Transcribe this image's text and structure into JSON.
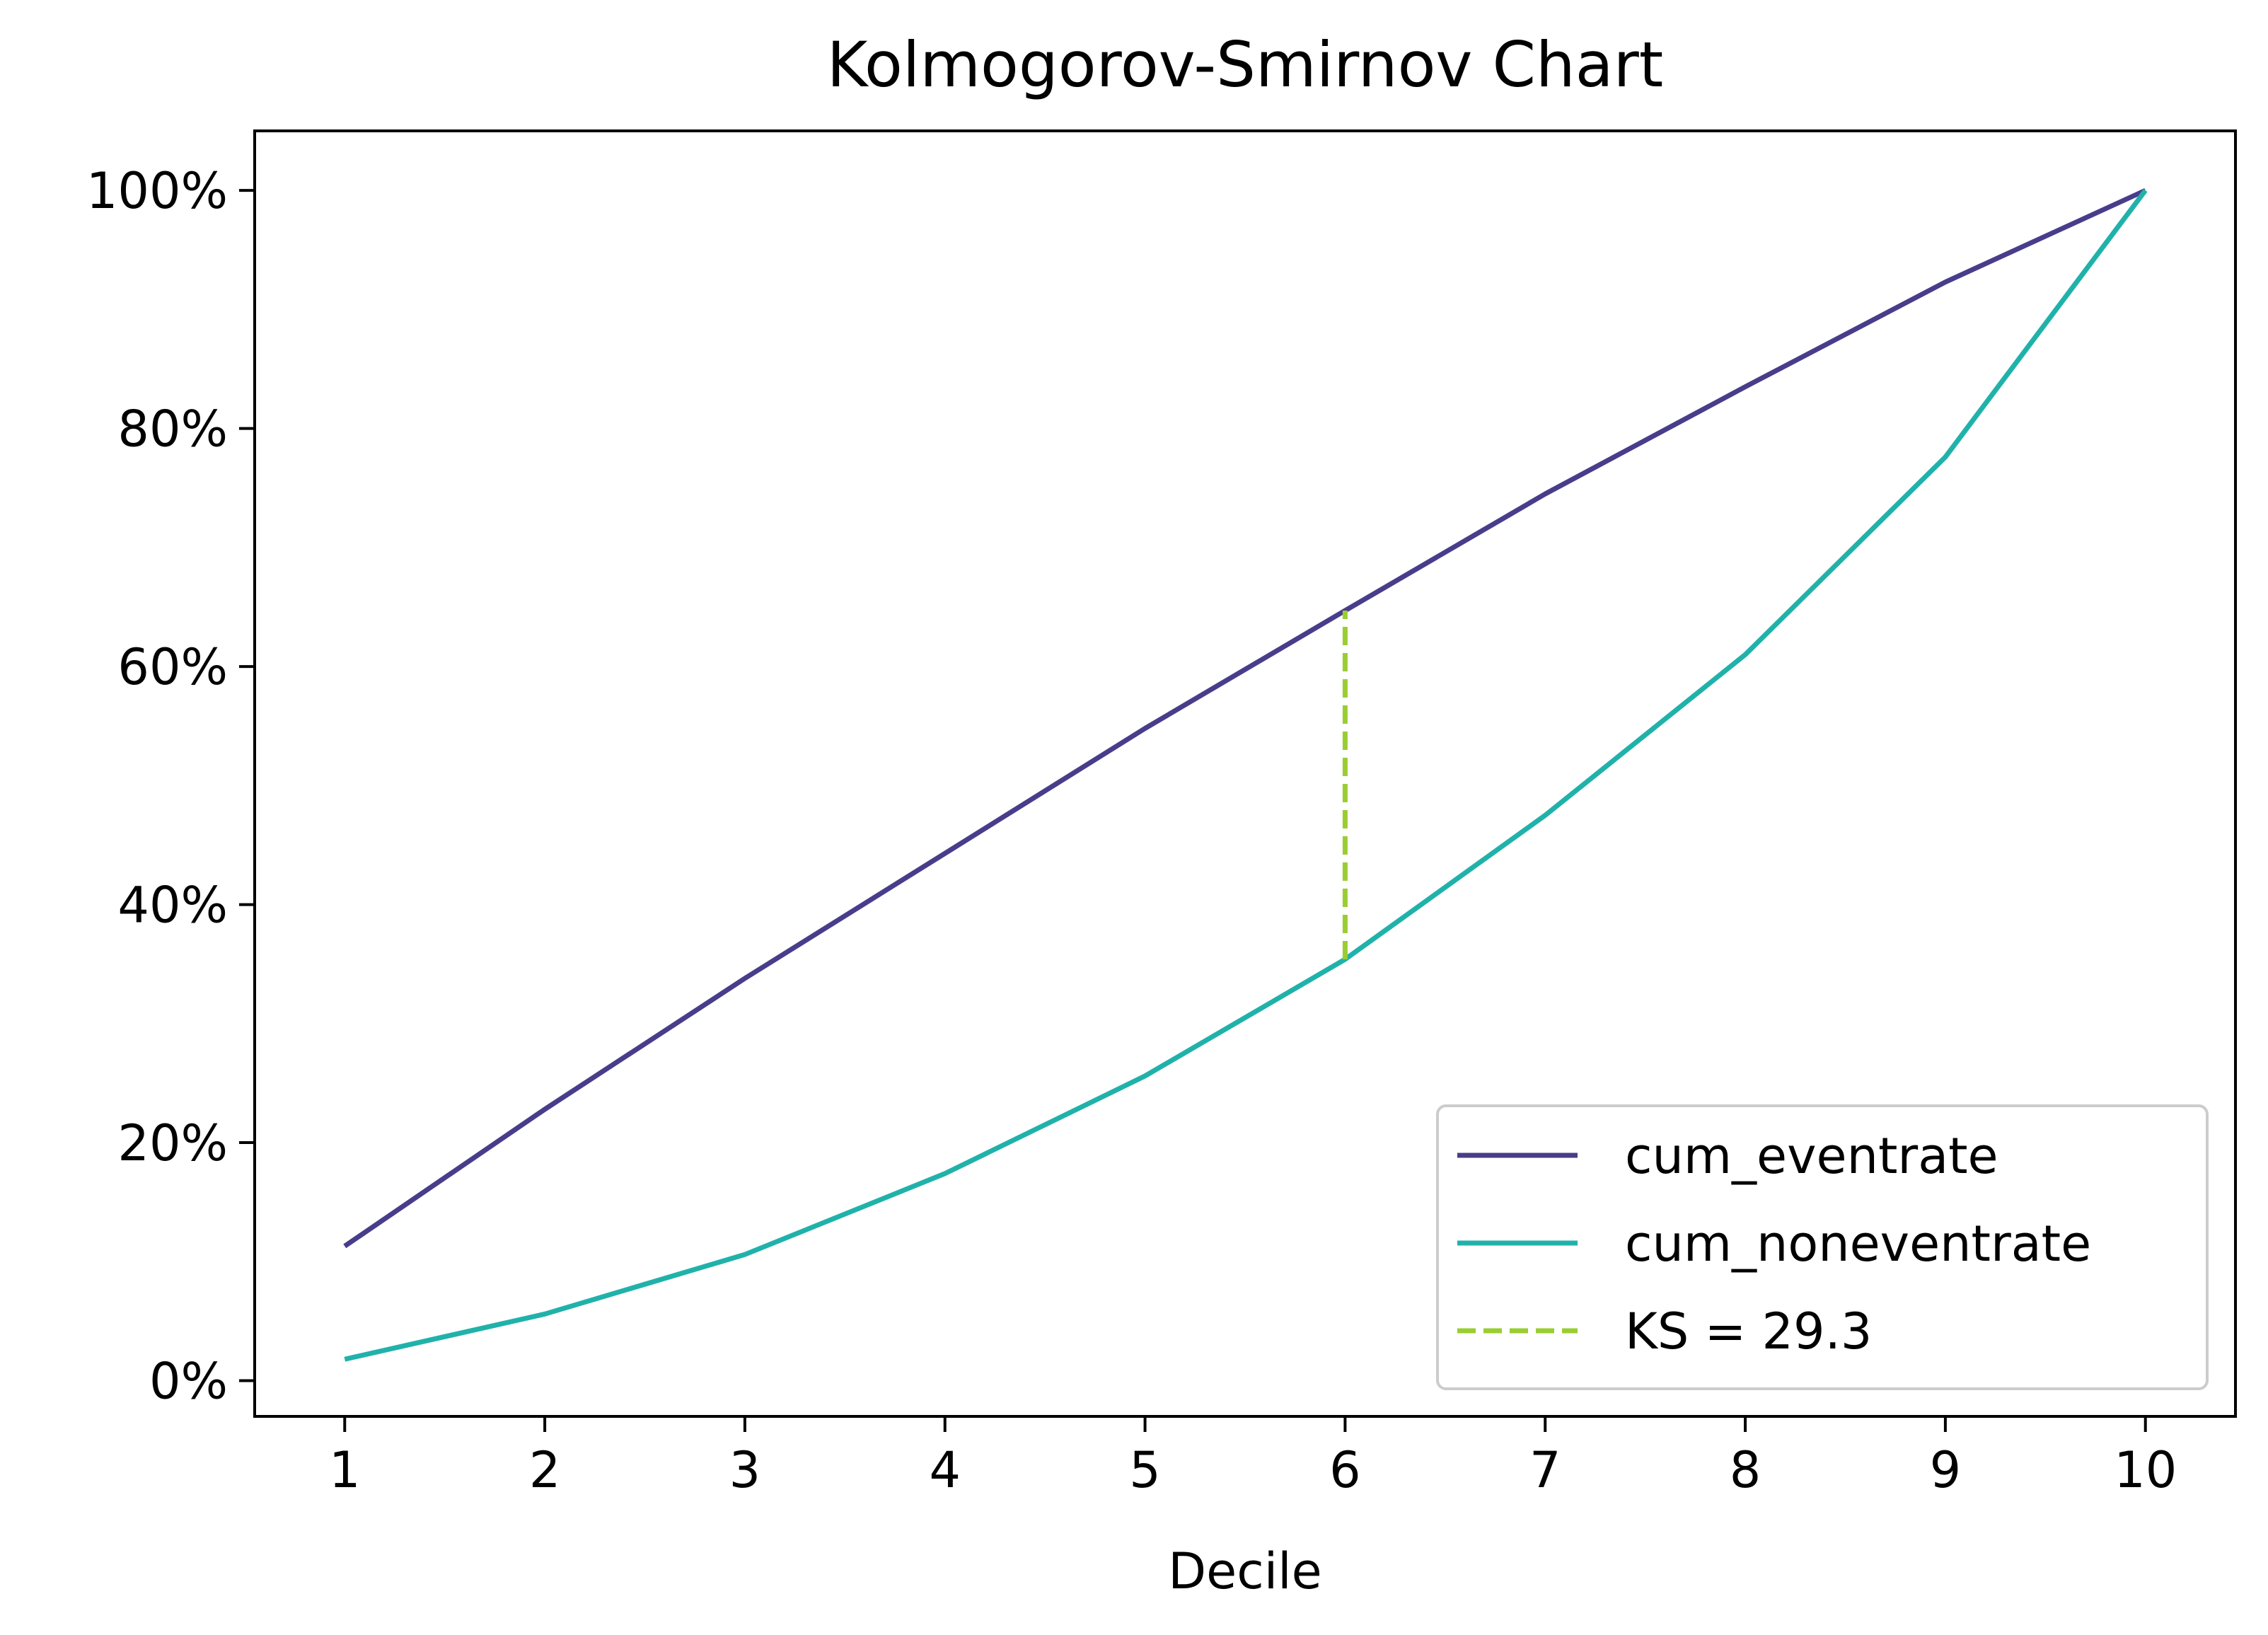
{
  "chart_data": {
    "type": "line",
    "title": "Kolmogorov-Smirnov Chart",
    "xlabel": "Decile",
    "ylabel": "",
    "x": [
      1,
      2,
      3,
      4,
      5,
      6,
      7,
      8,
      9,
      10
    ],
    "xticks": [
      "1",
      "2",
      "3",
      "4",
      "5",
      "6",
      "7",
      "8",
      "9",
      "10"
    ],
    "xlim": [
      0.55,
      10.45
    ],
    "ylim": [
      -3,
      105
    ],
    "yticks": [
      0,
      20,
      40,
      60,
      80,
      100
    ],
    "ytick_labels": [
      "0%",
      "20%",
      "40%",
      "60%",
      "80%",
      "100%"
    ],
    "grid": false,
    "legend_position": "lower-right",
    "series": [
      {
        "name": "cum_eventrate",
        "color": "#483d8b",
        "style": "solid",
        "values": [
          11.3,
          22.8,
          33.8,
          44.3,
          54.8,
          64.7,
          74.5,
          83.5,
          92.3,
          100.0
        ]
      },
      {
        "name": "cum_noneventrate",
        "color": "#20b2aa",
        "style": "solid",
        "values": [
          1.8,
          5.6,
          10.6,
          17.4,
          25.6,
          35.4,
          47.5,
          61.0,
          77.6,
          100.0
        ]
      }
    ],
    "ks_line": {
      "name": "KS = 29.3",
      "color": "#9acd32",
      "style": "dashed",
      "x": 6,
      "y_from": 35.4,
      "y_to": 64.7
    }
  }
}
